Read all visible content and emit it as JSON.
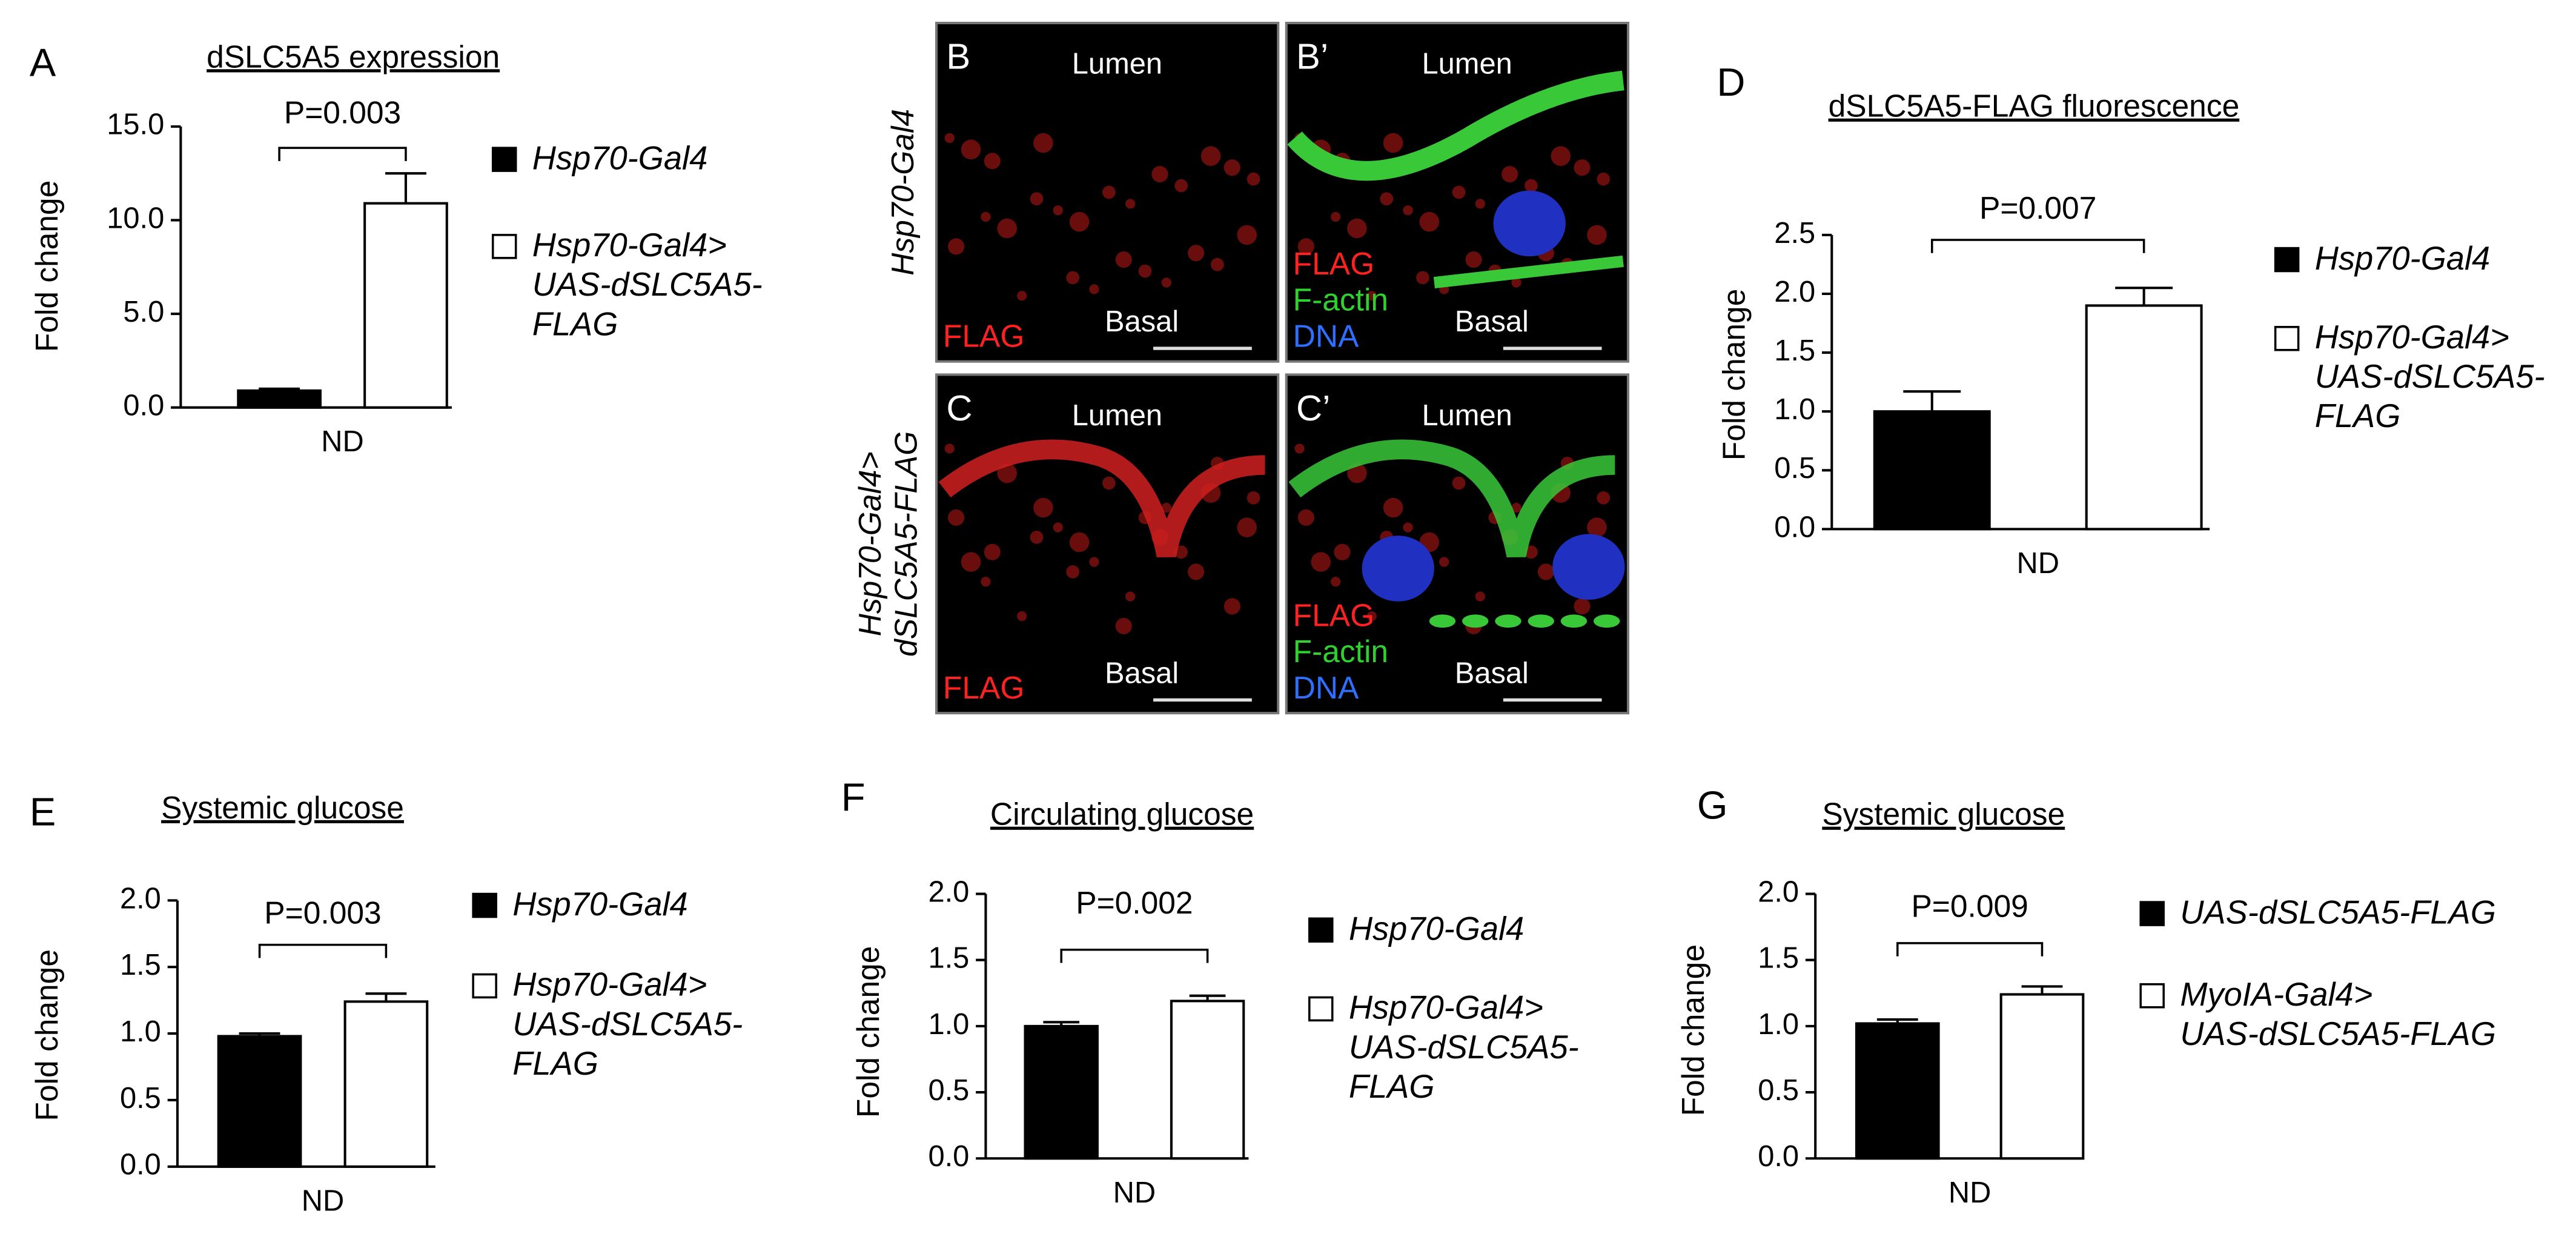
{
  "chart_data": [
    {
      "type": "bar",
      "panel": "A",
      "title": "dSLC5A5 expression",
      "y_label": "Fold change",
      "categories": [
        "ND"
      ],
      "annotation": "P=0.003",
      "ylim": [
        0,
        15
      ],
      "yticks": [
        {
          "value": 0,
          "label": "0.0"
        },
        {
          "value": 5,
          "label": "5.0"
        },
        {
          "value": 10,
          "label": "10.0"
        },
        {
          "value": 15,
          "label": "15.0"
        }
      ],
      "series": [
        {
          "name": "Hsp70-Gal4",
          "color": "#000000",
          "values": [
            0.9
          ],
          "errors": [
            0.1
          ]
        },
        {
          "name": "Hsp70-Gal4>\nUAS-dSLC5A5-\nFLAG",
          "color": "#ffffff",
          "values": [
            10.9
          ],
          "errors": [
            1.6
          ]
        }
      ]
    },
    {
      "type": "bar",
      "panel": "D",
      "title": "dSLC5A5-FLAG fluorescence",
      "y_label": "Fold change",
      "categories": [
        "ND"
      ],
      "annotation": "P=0.007",
      "ylim": [
        0,
        2.5
      ],
      "yticks": [
        {
          "value": 0,
          "label": "0.0"
        },
        0.5,
        {
          "value": 1,
          "label": "1.0"
        },
        1.5,
        {
          "value": 2,
          "label": "2.0"
        },
        2.5
      ],
      "series": [
        {
          "name": "Hsp70-Gal4",
          "color": "#000000",
          "values": [
            1.0
          ],
          "errors": [
            0.17
          ]
        },
        {
          "name": "Hsp70-Gal4>\nUAS-dSLC5A5-\nFLAG",
          "color": "#ffffff",
          "values": [
            1.9
          ],
          "errors": [
            0.15
          ]
        }
      ]
    },
    {
      "type": "bar",
      "panel": "E",
      "title": "Systemic glucose",
      "y_label": "Fold change",
      "categories": [
        "ND"
      ],
      "annotation": "P=0.003",
      "ylim": [
        0,
        2
      ],
      "yticks": [
        {
          "value": 0,
          "label": "0.0"
        },
        0.5,
        {
          "value": 1,
          "label": "1.0"
        },
        1.5,
        {
          "value": 2,
          "label": "2.0"
        }
      ],
      "series": [
        {
          "name": "Hsp70-Gal4",
          "color": "#000000",
          "values": [
            0.98
          ],
          "errors": [
            0.02
          ]
        },
        {
          "name": "Hsp70-Gal4>\nUAS-dSLC5A5-\nFLAG",
          "color": "#ffffff",
          "values": [
            1.24
          ],
          "errors": [
            0.06
          ]
        }
      ]
    },
    {
      "type": "bar",
      "panel": "F",
      "title": "Circulating glucose",
      "y_label": "Fold change",
      "categories": [
        "ND"
      ],
      "annotation": "P=0.002",
      "ylim": [
        0,
        2
      ],
      "yticks": [
        {
          "value": 0,
          "label": "0.0"
        },
        0.5,
        {
          "value": 1,
          "label": "1.0"
        },
        1.5,
        {
          "value": 2,
          "label": "2.0"
        }
      ],
      "series": [
        {
          "name": "Hsp70-Gal4",
          "color": "#000000",
          "values": [
            1.0
          ],
          "errors": [
            0.03
          ]
        },
        {
          "name": "Hsp70-Gal4>\nUAS-dSLC5A5-\nFLAG",
          "color": "#ffffff",
          "values": [
            1.19
          ],
          "errors": [
            0.04
          ]
        }
      ]
    },
    {
      "type": "bar",
      "panel": "G",
      "title": "Systemic glucose",
      "y_label": "Fold change",
      "categories": [
        "ND"
      ],
      "annotation": "P=0.009",
      "ylim": [
        0,
        2
      ],
      "yticks": [
        {
          "value": 0,
          "label": "0.0"
        },
        0.5,
        {
          "value": 1,
          "label": "1.0"
        },
        1.5,
        {
          "value": 2,
          "label": "2.0"
        }
      ],
      "series": [
        {
          "name": "UAS-dSLC5A5-FLAG",
          "color": "#000000",
          "values": [
            1.02
          ],
          "errors": [
            0.03
          ]
        },
        {
          "name": "MyoIA-Gal4>\nUAS-dSLC5A5-FLAG",
          "color": "#ffffff",
          "values": [
            1.24
          ],
          "errors": [
            0.06
          ]
        }
      ]
    }
  ],
  "micrographs": {
    "row_labels": [
      "Hsp70-Gal4",
      "Hsp70-Gal4>\ndSLC5A5-FLAG"
    ],
    "images": [
      {
        "panel": "B",
        "top": "Lumen",
        "bottom": "Basal",
        "channels": [
          "FLAG"
        ]
      },
      {
        "panel": "B’",
        "top": "Lumen",
        "bottom": "Basal",
        "channels": [
          "FLAG",
          "F-actin",
          "DNA"
        ]
      },
      {
        "panel": "C",
        "top": "Lumen",
        "bottom": "Basal",
        "channels": [
          "FLAG"
        ]
      },
      {
        "panel": "C’",
        "top": "Lumen",
        "bottom": "Basal",
        "channels": [
          "FLAG",
          "F-actin",
          "DNA"
        ]
      }
    ]
  }
}
